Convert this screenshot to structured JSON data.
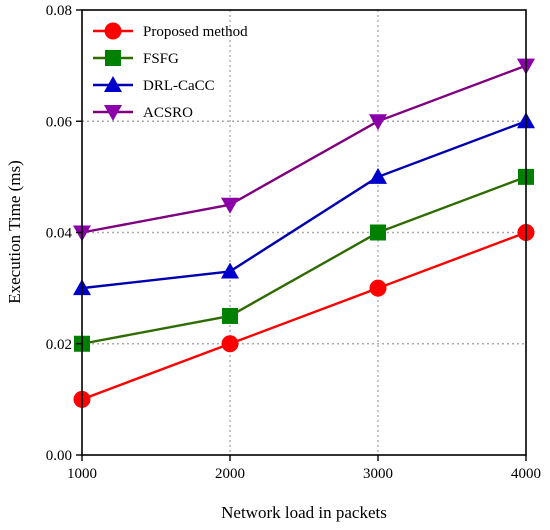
{
  "chart_data": {
    "type": "line",
    "title": "",
    "xlabel": "Network load in packets",
    "ylabel": "Execution Time (ms)",
    "x": [
      1000,
      2000,
      3000,
      4000
    ],
    "xticks": [
      "1000",
      "2000",
      "3000",
      "4000"
    ],
    "xlim": [
      1000,
      4000
    ],
    "yticks": [
      "0.00",
      "0.02",
      "0.04",
      "0.06",
      "0.08"
    ],
    "ylim": [
      0,
      0.08
    ],
    "grid": true,
    "legend_position": "top-left",
    "series": [
      {
        "name": "Proposed method",
        "values": [
          0.01,
          0.02,
          0.03,
          0.04
        ],
        "line_color": "#ff0000",
        "marker_color": "#ff0000",
        "marker": "circle"
      },
      {
        "name": "FSFG",
        "values": [
          0.02,
          0.025,
          0.04,
          0.05
        ],
        "line_color": "#2e6b00",
        "marker_color": "#008000",
        "marker": "square"
      },
      {
        "name": "DRL-CaCC",
        "values": [
          0.03,
          0.033,
          0.05,
          0.06
        ],
        "line_color": "#0000b0",
        "marker_color": "#0000cc",
        "marker": "triangle-up"
      },
      {
        "name": "ACSRO",
        "values": [
          0.04,
          0.045,
          0.06,
          0.07
        ],
        "line_color": "#7f007f",
        "marker_color": "#8b00a8",
        "marker": "triangle-down"
      }
    ]
  }
}
